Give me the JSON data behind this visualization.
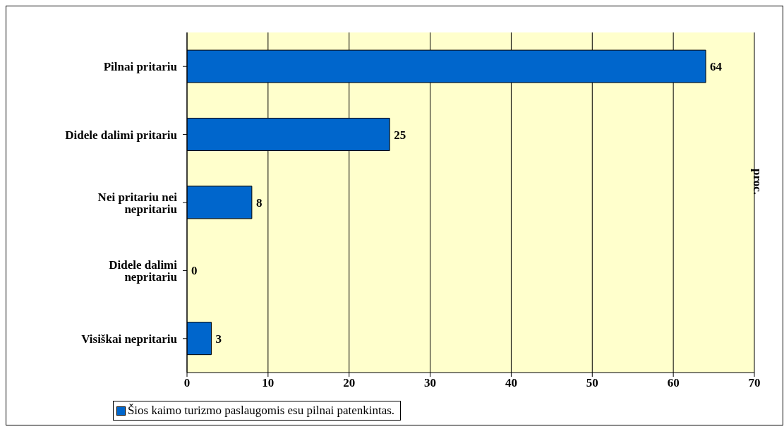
{
  "chart_data": {
    "type": "bar",
    "orientation": "horizontal",
    "ylabel": "proc.",
    "categories": [
      "Pilnai pritariu",
      "Didele dalimi pritariu",
      "Nei pritariu nei nepritariu",
      "Didele dalimi nepritariu",
      "Visiškai nepritariu"
    ],
    "series": [
      {
        "name": "Šios kaimo turizmo paslaugomis esu pilnai patenkintas.",
        "color": "#0066cc",
        "values": [
          64,
          25,
          8,
          0,
          3
        ]
      }
    ],
    "xlim": [
      0,
      70
    ],
    "xticks": [
      0,
      10,
      20,
      30,
      40,
      50,
      60,
      70
    ],
    "grid": "x",
    "legend": "bottom",
    "data_labels": true
  }
}
